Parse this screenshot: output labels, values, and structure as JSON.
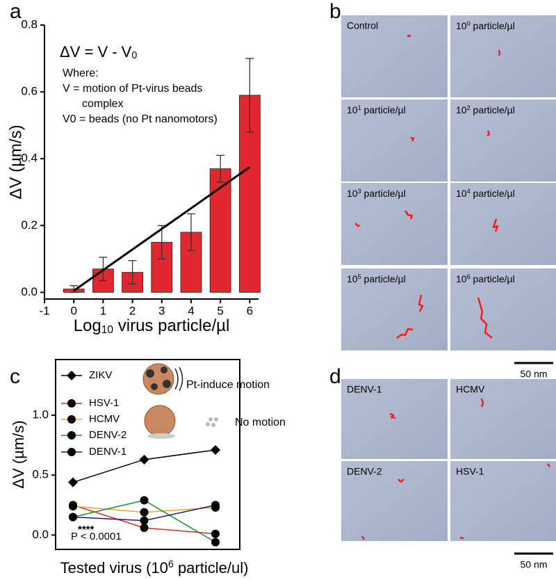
{
  "panel_labels": [
    "a",
    "b",
    "c",
    "d"
  ],
  "chart_data": [
    {
      "type": "bar",
      "ylabel": "ΔV (µm/s)",
      "xlabel": {
        "text": "Log",
        "sub": "10",
        "rest": " virus particle/µl"
      },
      "x": [
        0,
        1,
        2,
        3,
        4,
        5,
        6
      ],
      "values": [
        0.01,
        0.07,
        0.06,
        0.15,
        0.18,
        0.37,
        0.59
      ],
      "errors": [
        0.01,
        0.035,
        0.035,
        0.05,
        0.055,
        0.04,
        0.11
      ],
      "color": "#e0282e",
      "xlim": [
        -1,
        6.3
      ],
      "ylim": [
        -0.02,
        0.8
      ],
      "xticks": [
        -1,
        0,
        1,
        2,
        3,
        4,
        5,
        6
      ],
      "yticks": [
        {
          "value": 0,
          "label": "0.0"
        },
        {
          "value": 0.2,
          "label": "0.2"
        },
        {
          "value": 0.4,
          "label": "0.4"
        },
        {
          "value": 0.6,
          "label": "0.6"
        },
        {
          "value": 0.8,
          "label": "0.8"
        }
      ],
      "fit_line": {
        "x": [
          0,
          6
        ],
        "y": [
          0.005,
          0.375
        ]
      },
      "annotations": {
        "equation": {
          "text": "ΔV = V - V",
          "sub": "0"
        },
        "lines": [
          "Where:",
          "V = motion of Pt-virus beads",
          "complex",
          "V0 =  beads (no Pt nanomotors)"
        ]
      }
    },
    {
      "type": "line",
      "ylabel": "ΔV (µm/s)",
      "xlabel": {
        "text": "Tested virus (10",
        "sup": "6",
        "rest": " particle/ul)"
      },
      "categories": [
        null,
        null,
        null
      ],
      "series": [
        {
          "name": "ZIKV",
          "color": "#000000",
          "marker": "diamond",
          "values": [
            0.44,
            0.63,
            0.71
          ]
        },
        {
          "name": "HSV-1",
          "color": "#e8281e",
          "marker": "circle",
          "values": [
            0.25,
            0.06,
            0.01
          ]
        },
        {
          "name": "HCMV",
          "color": "#f5a020",
          "marker": "circle",
          "values": [
            0.24,
            0.19,
            0.23
          ]
        },
        {
          "name": "DENV-2",
          "color": "#1e8a3c",
          "marker": "circle",
          "values": [
            0.15,
            0.29,
            -0.06
          ]
        },
        {
          "name": "DENV-1",
          "color": "#1a1a6e",
          "marker": "circle",
          "values": [
            0.15,
            0.12,
            0.25
          ]
        }
      ],
      "ylim": [
        -0.12,
        1.465
      ],
      "yticks": [
        {
          "value": 0,
          "label": "0.0"
        },
        {
          "value": 0.5,
          "label": "0.5"
        },
        {
          "value": 1,
          "label": "1.0"
        }
      ],
      "annotations": {
        "motion": "Pt-induce motion",
        "no_motion": "No motion",
        "significance": "****",
        "p_value": "P < 0.0001"
      }
    }
  ],
  "images_b": [
    {
      "text": "Control"
    },
    {
      "base": "10",
      "sup": "0",
      "rest": " particle/µl"
    },
    {
      "base": "10",
      "sup": "1",
      "rest": " particle/µl"
    },
    {
      "base": "10",
      "sup": "2",
      "rest": " particle/µl"
    },
    {
      "base": "10",
      "sup": "3",
      "rest": " particle/µl"
    },
    {
      "base": "10",
      "sup": "4",
      "rest": " particle/µl"
    },
    {
      "base": "10",
      "sup": "5",
      "rest": " particle/µl"
    },
    {
      "base": "10",
      "sup": "6",
      "rest": " particle/µl"
    }
  ],
  "images_d": [
    "DENV-1",
    "HCMV",
    "DENV-2",
    "HSV-1"
  ],
  "scale_bar": "50 nm"
}
